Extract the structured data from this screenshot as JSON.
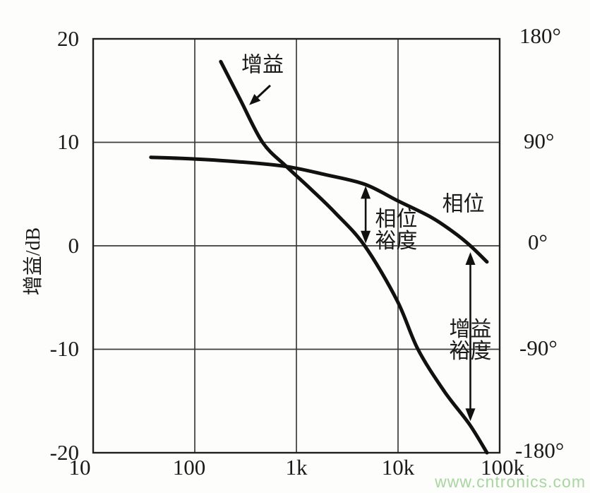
{
  "chart_data": {
    "type": "line",
    "title": "",
    "description_visible_text_only": "Bode plot: gain and phase vs frequency with gain margin and phase margin arrows",
    "x_axis": {
      "scale": "log",
      "min": 10,
      "max": 100000,
      "ticks": [
        "10",
        "100",
        "1k",
        "10k",
        "100k"
      ],
      "tick_values": [
        10,
        100,
        1000,
        10000,
        100000
      ],
      "gridline_values": [
        100,
        1000,
        10000
      ]
    },
    "y_left": {
      "label": "增益/dB",
      "min": -20,
      "max": 20,
      "ticks": [
        "20",
        "10",
        "0",
        "-10",
        "-20"
      ],
      "tick_values": [
        20,
        10,
        0,
        -10,
        -20
      ],
      "gridline_values": [
        10,
        0,
        -10
      ]
    },
    "y_right": {
      "min": -180,
      "max": 180,
      "ticks": [
        "180°",
        "90°",
        "0°",
        "-90°",
        "-180°"
      ],
      "tick_values": [
        180,
        90,
        0,
        -90,
        -180
      ]
    },
    "grid": true,
    "legend_position": "none",
    "series": [
      {
        "name": "增益",
        "axis": "left",
        "units": "dB",
        "points": [
          [
            180,
            17.8
          ],
          [
            278,
            14.2
          ],
          [
            464,
            10
          ],
          [
            790,
            7.7
          ],
          [
            1380,
            5.5
          ],
          [
            2400,
            3.2
          ],
          [
            4700,
            0
          ],
          [
            9800,
            -5.3
          ],
          [
            15700,
            -10
          ],
          [
            28700,
            -14.1
          ],
          [
            50000,
            -17.2
          ],
          [
            75000,
            -20
          ]
        ]
      },
      {
        "name": "相位",
        "axis": "right",
        "units": "deg",
        "points": [
          [
            37,
            77
          ],
          [
            100,
            75.5
          ],
          [
            278,
            73
          ],
          [
            790,
            69
          ],
          [
            1900,
            62
          ],
          [
            4700,
            53.5
          ],
          [
            10000,
            39
          ],
          [
            21000,
            25
          ],
          [
            35000,
            12
          ],
          [
            51500,
            0
          ],
          [
            75000,
            -14
          ]
        ]
      }
    ],
    "annotations": {
      "gain": {
        "text": "增益",
        "f": 464,
        "y_axis": "gain",
        "y": 17.5
      },
      "gain_pointer_arrow": {
        "from_f": 553,
        "from_db": 15.5,
        "to_f": 343,
        "to_db": 13.6
      },
      "phase": {
        "text": "相位",
        "f": 44000,
        "y_axis": "phase",
        "y": 36
      },
      "phase_margin": {
        "line1": "相位",
        "line2": "裕度",
        "f": 9600,
        "y_axis": "phase",
        "y": 13.5
      },
      "phase_margin_arrow": {
        "f": 4800,
        "from_deg": 52,
        "to_deg": 2
      },
      "gain_margin": {
        "line1": "增益",
        "line2": "裕度",
        "f": 51500,
        "y_axis": "phase",
        "y": -82.5
      },
      "gain_margin_arrow": {
        "f": 51500,
        "from_deg": -5.5,
        "to_deg": -152.5
      }
    },
    "crossover_readings": {
      "gain_crossover_freq_hz": 4700,
      "phase_at_gain_crossover_deg": 53,
      "phase_crossover_freq_hz": 51500,
      "gain_at_phase_crossover_db": -17.2
    }
  },
  "colors": {
    "curve": "#111111",
    "grid": "#3c3c3c",
    "border": "#1f1f1f",
    "text": "#1a1a1a",
    "watermark_green": "#a8d5a0"
  },
  "watermark": {
    "text": "www.cntronics.com"
  }
}
